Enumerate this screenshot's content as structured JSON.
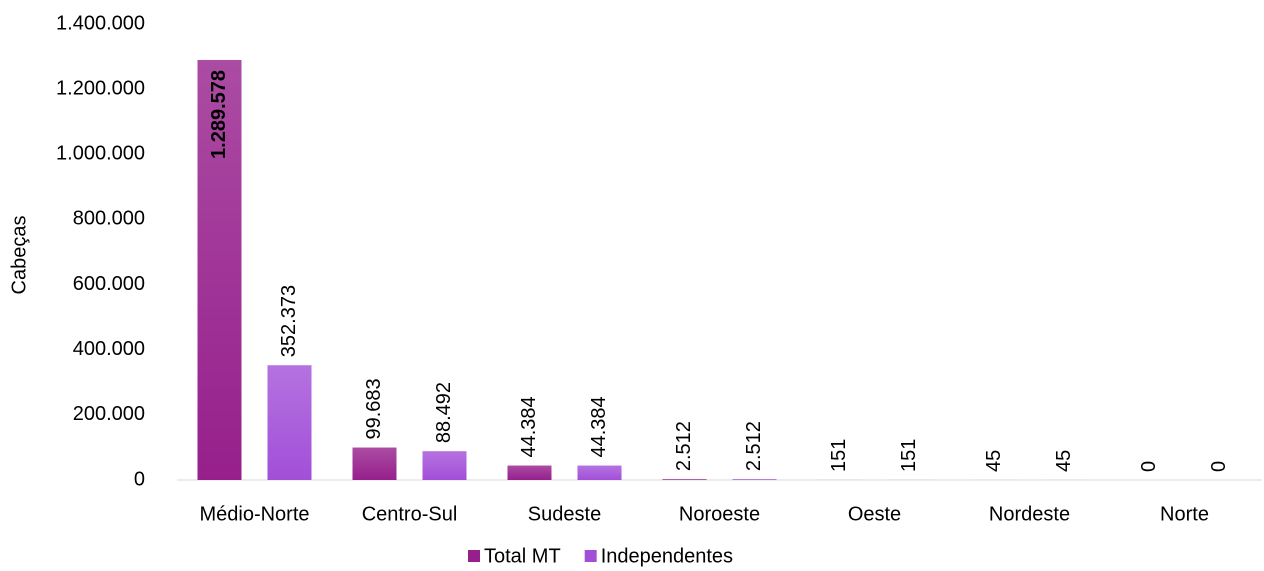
{
  "chart_data": {
    "type": "bar",
    "y_label": "Cabeças",
    "categories": [
      "Médio-Norte",
      "Centro-Sul",
      "Sudeste",
      "Noroeste",
      "Oeste",
      "Nordeste",
      "Norte"
    ],
    "series": [
      {
        "name": "Total MT",
        "color": "#961f8c",
        "values": [
          1289578,
          99683,
          44384,
          2512,
          151,
          45,
          0
        ],
        "value_labels": [
          "1.289.578",
          "99.683",
          "44.384",
          "2.512",
          "151",
          "45",
          "0"
        ]
      },
      {
        "name": "Independentes",
        "color": "#a24fd8",
        "values": [
          352373,
          88492,
          44384,
          2512,
          151,
          45,
          0
        ],
        "value_labels": [
          "352.373",
          "88.492",
          "44.384",
          "2.512",
          "151",
          "45",
          "0"
        ]
      }
    ],
    "ylim": [
      0,
      1400000
    ],
    "yticks": [
      0,
      {
        "value": 200000,
        "label": "200.000"
      },
      {
        "value": 400000,
        "label": "400.000"
      },
      {
        "value": 600000,
        "label": "600.000"
      },
      {
        "value": 800000,
        "label": "800.000"
      },
      {
        "value": 1000000,
        "label": "1.000.000"
      },
      {
        "value": 1200000,
        "label": "1.200.000"
      },
      {
        "value": 1400000,
        "label": "1.400.000"
      }
    ],
    "grid": false,
    "legend": "bottom"
  }
}
